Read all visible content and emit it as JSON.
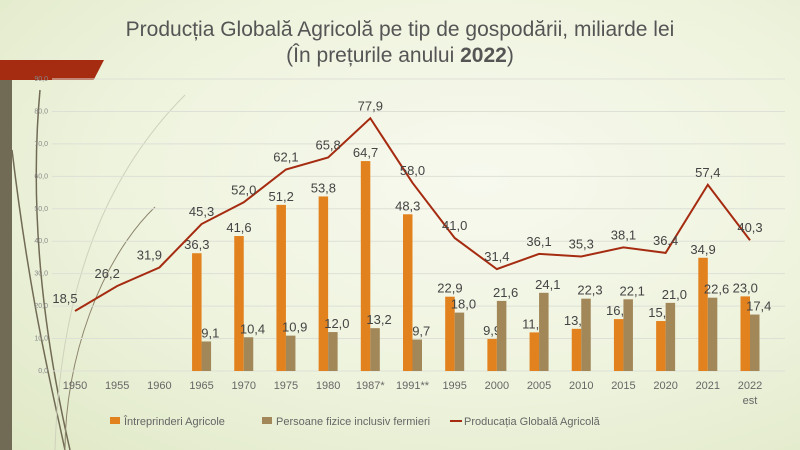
{
  "title_line1": "Producția Globală Agricolă pe tip de gospodării, miliarde lei",
  "title_line2_prefix": "(În prețurile anului ",
  "title_line2_year": "2022",
  "title_line2_suffix": ")",
  "chart_data": {
    "type": "bar",
    "categories": [
      "1950",
      "1955",
      "1960",
      "1965",
      "1970",
      "1975",
      "1980",
      "1987*",
      "1991**",
      "1995",
      "2000",
      "2005",
      "2010",
      "2015",
      "2020",
      "2021",
      "2022 est"
    ],
    "series": [
      {
        "name": "Întreprinderi Agricole",
        "type": "bar",
        "color": "#e2821e",
        "values": [
          null,
          null,
          null,
          36.3,
          41.6,
          51.2,
          53.8,
          64.7,
          48.3,
          22.9,
          9.9,
          11.9,
          13.0,
          16.0,
          15.4,
          34.9,
          23.0
        ]
      },
      {
        "name": "Persoane fizice inclusiv fermieri",
        "type": "bar",
        "color": "#a28759",
        "values": [
          null,
          null,
          null,
          9.1,
          10.4,
          10.9,
          12.0,
          13.2,
          9.7,
          18.0,
          21.6,
          24.1,
          22.3,
          22.1,
          21.0,
          22.6,
          17.4
        ]
      },
      {
        "name": "Producația Globală Agricolă",
        "type": "line",
        "color": "#a52b11",
        "values": [
          18.5,
          26.2,
          31.9,
          45.3,
          52.0,
          62.1,
          65.8,
          77.9,
          58.0,
          41.0,
          31.4,
          36.1,
          35.3,
          38.1,
          36.4,
          57.4,
          40.3
        ]
      }
    ],
    "yticks": [
      "0,0",
      "10,0",
      "20,0",
      "30,0",
      "40,0",
      "50,0",
      "60,0",
      "70,0",
      "80,0",
      "90,0"
    ],
    "ylim": [
      0,
      90
    ],
    "legend": "bottom",
    "grid": true
  }
}
